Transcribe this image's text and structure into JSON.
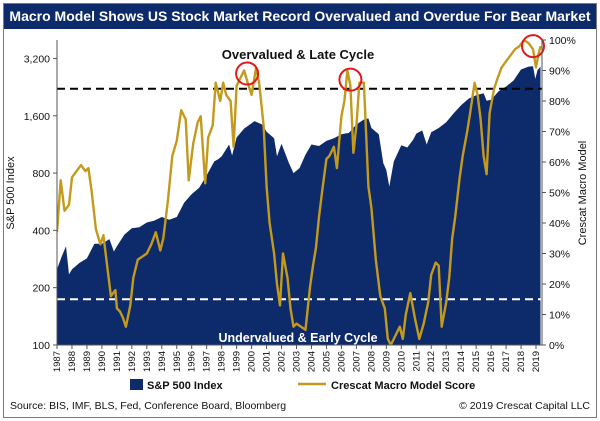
{
  "title": "Macro Model Shows US Stock Market Record Overvalued and Overdue For Bear Market",
  "source": "Source: BIS, IMF, BLS, Fed, Conference Board, Bloomberg",
  "copyright": "© 2019 Crescat Capital LLC",
  "colors": {
    "title_bg": "#0d2b6b",
    "area": "#0d2b6b",
    "score_line": "#c39a1e",
    "circle": "#e0191b",
    "ref_line": "#000000"
  },
  "chart_data": {
    "type": "area",
    "annotations": {
      "top": "Overvalued & Late Cycle",
      "bottom": "Undervalued & Early Cycle"
    },
    "y_left": {
      "label": "S&P 500 Index",
      "scale": "log",
      "range": [
        100,
        4000
      ],
      "ticks": [
        "100",
        "200",
        "400",
        "800",
        "1,600",
        "3,200"
      ]
    },
    "y_right": {
      "label": "Crescat Macro Model",
      "range": [
        0,
        1
      ],
      "ticks": [
        "0%",
        "10%",
        "20%",
        "30%",
        "40%",
        "50%",
        "60%",
        "70%",
        "80%",
        "90%",
        "100%"
      ]
    },
    "x_ticks": [
      "1987",
      "1988",
      "1989",
      "1990",
      "1991",
      "1992",
      "1993",
      "1994",
      "1995",
      "1996",
      "1997",
      "1998",
      "1999",
      "2000",
      "2001",
      "2002",
      "2003",
      "2004",
      "2005",
      "2006",
      "2007",
      "2008",
      "2009",
      "2010",
      "2011",
      "2012",
      "2013",
      "2014",
      "2015",
      "2016",
      "2017",
      "2018",
      "2019"
    ],
    "reference_lines": [
      0.84,
      0.15
    ],
    "highlight_circles": [
      {
        "x": 1999.7,
        "y": 0.89
      },
      {
        "x": 2006.6,
        "y": 0.87
      },
      {
        "x": 2018.8,
        "y": 0.98
      }
    ],
    "legend": {
      "placement": "bottom"
    },
    "series": [
      {
        "name": "S&P 500 Index",
        "type": "area",
        "points": [
          [
            1987.0,
            250
          ],
          [
            1987.3,
            290
          ],
          [
            1987.6,
            330
          ],
          [
            1987.8,
            235
          ],
          [
            1988.0,
            250
          ],
          [
            1988.5,
            270
          ],
          [
            1989.0,
            285
          ],
          [
            1989.5,
            340
          ],
          [
            1990.0,
            340
          ],
          [
            1990.5,
            360
          ],
          [
            1990.8,
            310
          ],
          [
            1991.0,
            330
          ],
          [
            1991.5,
            380
          ],
          [
            1992.0,
            410
          ],
          [
            1992.5,
            415
          ],
          [
            1993.0,
            440
          ],
          [
            1993.5,
            450
          ],
          [
            1994.0,
            470
          ],
          [
            1994.5,
            455
          ],
          [
            1995.0,
            470
          ],
          [
            1995.5,
            560
          ],
          [
            1996.0,
            620
          ],
          [
            1996.5,
            670
          ],
          [
            1997.0,
            780
          ],
          [
            1997.5,
            920
          ],
          [
            1997.8,
            950
          ],
          [
            1998.0,
            980
          ],
          [
            1998.5,
            1130
          ],
          [
            1998.7,
            990
          ],
          [
            1999.0,
            1230
          ],
          [
            1999.5,
            1370
          ],
          [
            2000.0,
            1460
          ],
          [
            2000.2,
            1500
          ],
          [
            2000.7,
            1440
          ],
          [
            2001.0,
            1320
          ],
          [
            2001.5,
            1220
          ],
          [
            2001.7,
            980
          ],
          [
            2002.0,
            1140
          ],
          [
            2002.5,
            900
          ],
          [
            2002.8,
            800
          ],
          [
            2003.2,
            850
          ],
          [
            2003.6,
            1000
          ],
          [
            2004.0,
            1130
          ],
          [
            2004.5,
            1110
          ],
          [
            2005.0,
            1180
          ],
          [
            2005.5,
            1220
          ],
          [
            2006.0,
            1280
          ],
          [
            2006.5,
            1300
          ],
          [
            2007.0,
            1440
          ],
          [
            2007.5,
            1530
          ],
          [
            2007.8,
            1550
          ],
          [
            2008.0,
            1380
          ],
          [
            2008.5,
            1280
          ],
          [
            2008.8,
            900
          ],
          [
            2009.0,
            830
          ],
          [
            2009.2,
            680
          ],
          [
            2009.5,
            920
          ],
          [
            2010.0,
            1120
          ],
          [
            2010.4,
            1090
          ],
          [
            2010.8,
            1200
          ],
          [
            2011.0,
            1290
          ],
          [
            2011.4,
            1340
          ],
          [
            2011.7,
            1130
          ],
          [
            2012.0,
            1310
          ],
          [
            2012.5,
            1380
          ],
          [
            2013.0,
            1480
          ],
          [
            2013.5,
            1650
          ],
          [
            2014.0,
            1820
          ],
          [
            2014.5,
            1970
          ],
          [
            2015.0,
            2050
          ],
          [
            2015.5,
            2100
          ],
          [
            2015.7,
            1920
          ],
          [
            2016.0,
            1940
          ],
          [
            2016.5,
            2150
          ],
          [
            2017.0,
            2280
          ],
          [
            2017.5,
            2450
          ],
          [
            2018.0,
            2800
          ],
          [
            2018.5,
            2900
          ],
          [
            2018.8,
            2910
          ],
          [
            2018.95,
            2500
          ],
          [
            2019.1,
            2780
          ],
          [
            2019.3,
            2900
          ]
        ]
      },
      {
        "name": "Crescat Macro Model Score",
        "type": "line",
        "points": [
          [
            1987.0,
            0.37
          ],
          [
            1987.25,
            0.54
          ],
          [
            1987.5,
            0.44
          ],
          [
            1987.8,
            0.46
          ],
          [
            1988.0,
            0.55
          ],
          [
            1988.3,
            0.57
          ],
          [
            1988.6,
            0.59
          ],
          [
            1988.9,
            0.57
          ],
          [
            1989.1,
            0.58
          ],
          [
            1989.3,
            0.51
          ],
          [
            1989.6,
            0.38
          ],
          [
            1989.9,
            0.33
          ],
          [
            1990.1,
            0.36
          ],
          [
            1990.4,
            0.24
          ],
          [
            1990.6,
            0.16
          ],
          [
            1990.9,
            0.18
          ],
          [
            1991.0,
            0.12
          ],
          [
            1991.2,
            0.11
          ],
          [
            1991.4,
            0.09
          ],
          [
            1991.6,
            0.06
          ],
          [
            1991.9,
            0.13
          ],
          [
            1992.1,
            0.22
          ],
          [
            1992.4,
            0.28
          ],
          [
            1992.7,
            0.29
          ],
          [
            1993.0,
            0.3
          ],
          [
            1993.3,
            0.33
          ],
          [
            1993.6,
            0.37
          ],
          [
            1993.9,
            0.31
          ],
          [
            1994.1,
            0.35
          ],
          [
            1994.4,
            0.47
          ],
          [
            1994.7,
            0.62
          ],
          [
            1995.0,
            0.67
          ],
          [
            1995.3,
            0.77
          ],
          [
            1995.6,
            0.74
          ],
          [
            1995.8,
            0.54
          ],
          [
            1996.1,
            0.66
          ],
          [
            1996.4,
            0.73
          ],
          [
            1996.6,
            0.75
          ],
          [
            1996.9,
            0.53
          ],
          [
            1997.1,
            0.68
          ],
          [
            1997.4,
            0.72
          ],
          [
            1997.6,
            0.86
          ],
          [
            1997.9,
            0.8
          ],
          [
            1998.1,
            0.86
          ],
          [
            1998.3,
            0.82
          ],
          [
            1998.6,
            0.8
          ],
          [
            1998.8,
            0.65
          ],
          [
            1999.0,
            0.85
          ],
          [
            1999.3,
            0.88
          ],
          [
            1999.5,
            0.9
          ],
          [
            1999.8,
            0.85
          ],
          [
            2000.0,
            0.82
          ],
          [
            2000.3,
            0.91
          ],
          [
            2000.5,
            0.86
          ],
          [
            2000.8,
            0.72
          ],
          [
            2001.0,
            0.52
          ],
          [
            2001.2,
            0.4
          ],
          [
            2001.5,
            0.3
          ],
          [
            2001.7,
            0.2
          ],
          [
            2001.9,
            0.13
          ],
          [
            2002.1,
            0.3
          ],
          [
            2002.4,
            0.22
          ],
          [
            2002.6,
            0.12
          ],
          [
            2002.8,
            0.06
          ],
          [
            2003.0,
            0.07
          ],
          [
            2003.3,
            0.06
          ],
          [
            2003.6,
            0.05
          ],
          [
            2003.9,
            0.19
          ],
          [
            2004.1,
            0.26
          ],
          [
            2004.3,
            0.32
          ],
          [
            2004.5,
            0.42
          ],
          [
            2004.7,
            0.5
          ],
          [
            2005.0,
            0.61
          ],
          [
            2005.2,
            0.62
          ],
          [
            2005.5,
            0.65
          ],
          [
            2005.7,
            0.58
          ],
          [
            2006.0,
            0.75
          ],
          [
            2006.2,
            0.8
          ],
          [
            2006.4,
            0.9
          ],
          [
            2006.6,
            0.85
          ],
          [
            2006.8,
            0.63
          ],
          [
            2007.0,
            0.72
          ],
          [
            2007.2,
            0.86
          ],
          [
            2007.5,
            0.86
          ],
          [
            2007.8,
            0.52
          ],
          [
            2008.0,
            0.45
          ],
          [
            2008.3,
            0.28
          ],
          [
            2008.6,
            0.16
          ],
          [
            2008.9,
            0.12
          ],
          [
            2009.1,
            0.02
          ],
          [
            2009.3,
            0.0
          ],
          [
            2009.6,
            0.03
          ],
          [
            2009.9,
            0.06
          ],
          [
            2010.1,
            0.02
          ],
          [
            2010.3,
            0.1
          ],
          [
            2010.6,
            0.17
          ],
          [
            2010.9,
            0.09
          ],
          [
            2011.2,
            0.02
          ],
          [
            2011.5,
            0.07
          ],
          [
            2011.8,
            0.14
          ],
          [
            2012.0,
            0.23
          ],
          [
            2012.3,
            0.27
          ],
          [
            2012.5,
            0.26
          ],
          [
            2012.7,
            0.06
          ],
          [
            2013.0,
            0.14
          ],
          [
            2013.2,
            0.22
          ],
          [
            2013.4,
            0.35
          ],
          [
            2013.6,
            0.42
          ],
          [
            2013.9,
            0.55
          ],
          [
            2014.1,
            0.62
          ],
          [
            2014.4,
            0.7
          ],
          [
            2014.6,
            0.76
          ],
          [
            2014.9,
            0.86
          ],
          [
            2015.1,
            0.82
          ],
          [
            2015.3,
            0.74
          ],
          [
            2015.5,
            0.62
          ],
          [
            2015.7,
            0.56
          ],
          [
            2015.9,
            0.76
          ],
          [
            2016.2,
            0.84
          ],
          [
            2016.4,
            0.87
          ],
          [
            2016.7,
            0.91
          ],
          [
            2017.0,
            0.93
          ],
          [
            2017.3,
            0.95
          ],
          [
            2017.6,
            0.97
          ],
          [
            2017.9,
            0.98
          ],
          [
            2018.2,
            1.0
          ],
          [
            2018.5,
            0.99
          ],
          [
            2018.8,
            0.97
          ],
          [
            2019.0,
            0.91
          ],
          [
            2019.15,
            0.95
          ],
          [
            2019.3,
            0.98
          ]
        ]
      }
    ]
  }
}
